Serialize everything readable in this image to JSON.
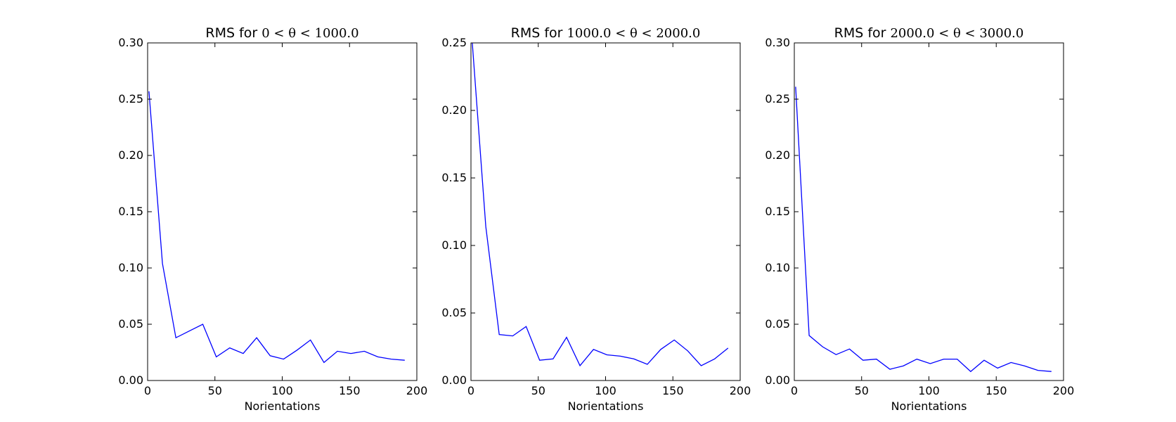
{
  "chart_data": [
    {
      "type": "line",
      "title": "RMS for 0 < θ < 1000.0",
      "title_prefix": "RMS for",
      "title_math": "0 < θ < 1000.0",
      "xlabel": "Norientations",
      "ylabel": "",
      "xlim": [
        0,
        200
      ],
      "ylim": [
        0,
        0.3
      ],
      "xticks": [
        0,
        50,
        100,
        150,
        200
      ],
      "yticks": [
        0.0,
        0.05,
        0.1,
        0.15,
        0.2,
        0.25,
        0.3
      ],
      "xtick_labels": [
        "0",
        "50",
        "100",
        "150",
        "200"
      ],
      "ytick_labels": [
        "0.00",
        "0.05",
        "0.10",
        "0.15",
        "0.20",
        "0.25",
        "0.30"
      ],
      "grid": false,
      "series": [
        {
          "color": "#0000ff",
          "x": [
            1,
            11,
            21,
            31,
            41,
            51,
            61,
            71,
            81,
            91,
            101,
            111,
            121,
            131,
            141,
            151,
            161,
            171,
            181,
            191
          ],
          "y": [
            0.257,
            0.104,
            0.038,
            0.044,
            0.05,
            0.021,
            0.029,
            0.024,
            0.038,
            0.022,
            0.019,
            0.027,
            0.036,
            0.016,
            0.026,
            0.024,
            0.026,
            0.021,
            0.019,
            0.018
          ]
        }
      ]
    },
    {
      "type": "line",
      "title": "RMS for 1000.0 < θ < 2000.0",
      "title_prefix": "RMS for",
      "title_math": "1000.0 < θ < 2000.0",
      "xlabel": "Norientations",
      "ylabel": "",
      "xlim": [
        0,
        200
      ],
      "ylim": [
        0,
        0.25
      ],
      "xticks": [
        0,
        50,
        100,
        150,
        200
      ],
      "yticks": [
        0.0,
        0.05,
        0.1,
        0.15,
        0.2,
        0.25
      ],
      "xtick_labels": [
        "0",
        "50",
        "100",
        "150",
        "200"
      ],
      "ytick_labels": [
        "0.00",
        "0.05",
        "0.10",
        "0.15",
        "0.20",
        "0.25"
      ],
      "grid": false,
      "series": [
        {
          "color": "#0000ff",
          "x": [
            1,
            11,
            21,
            31,
            41,
            51,
            61,
            71,
            81,
            91,
            101,
            111,
            121,
            131,
            141,
            151,
            161,
            171,
            181,
            191
          ],
          "y": [
            0.25,
            0.114,
            0.034,
            0.033,
            0.04,
            0.015,
            0.016,
            0.032,
            0.011,
            0.023,
            0.019,
            0.018,
            0.016,
            0.012,
            0.023,
            0.03,
            0.022,
            0.011,
            0.016,
            0.024
          ]
        }
      ]
    },
    {
      "type": "line",
      "title": "RMS for 2000.0 < θ < 3000.0",
      "title_prefix": "RMS for",
      "title_math": "2000.0 < θ < 3000.0",
      "xlabel": "Norientations",
      "ylabel": "",
      "xlim": [
        0,
        200
      ],
      "ylim": [
        0,
        0.3
      ],
      "xticks": [
        0,
        50,
        100,
        150,
        200
      ],
      "yticks": [
        0.0,
        0.05,
        0.1,
        0.15,
        0.2,
        0.25,
        0.3
      ],
      "xtick_labels": [
        "0",
        "50",
        "100",
        "150",
        "200"
      ],
      "ytick_labels": [
        "0.00",
        "0.05",
        "0.10",
        "0.15",
        "0.20",
        "0.25",
        "0.30"
      ],
      "grid": false,
      "series": [
        {
          "color": "#0000ff",
          "x": [
            1,
            11,
            21,
            31,
            41,
            51,
            61,
            71,
            81,
            91,
            101,
            111,
            121,
            131,
            141,
            151,
            161,
            171,
            181,
            191
          ],
          "y": [
            0.261,
            0.04,
            0.03,
            0.023,
            0.028,
            0.018,
            0.019,
            0.01,
            0.013,
            0.019,
            0.015,
            0.019,
            0.019,
            0.008,
            0.018,
            0.011,
            0.016,
            0.013,
            0.009,
            0.008
          ]
        }
      ]
    }
  ]
}
